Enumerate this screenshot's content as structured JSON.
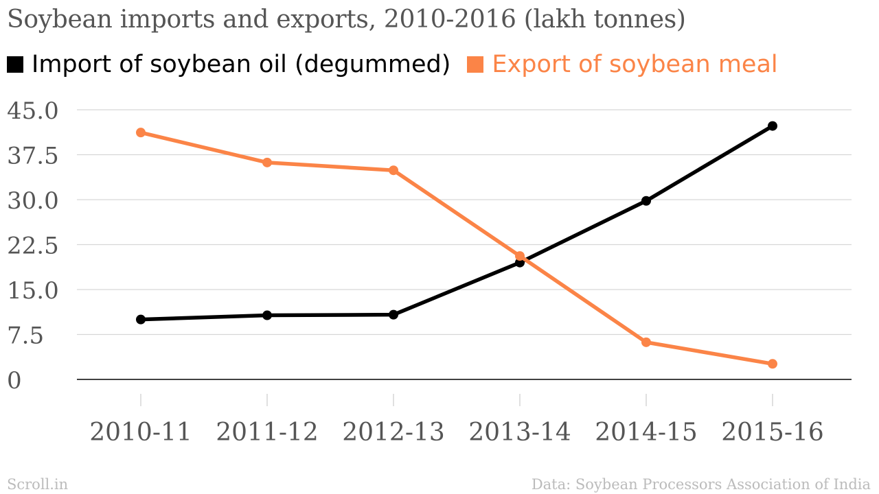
{
  "chart_data": {
    "type": "line",
    "title": "Soybean imports and exports, 2010-2016 (lakh tonnes)",
    "categories": [
      "2010-11",
      "2011-12",
      "2012-13",
      "2013-14",
      "2014-15",
      "2015-16"
    ],
    "series": [
      {
        "name": "Import of soybean oil (degummed)",
        "color": "#000000",
        "values": [
          10.0,
          10.7,
          10.8,
          19.5,
          29.8,
          42.3
        ]
      },
      {
        "name": "Export of soybean meal",
        "color": "#fb8447",
        "values": [
          41.2,
          36.2,
          34.9,
          20.6,
          6.2,
          2.6
        ]
      }
    ],
    "yticks": [
      "0",
      "7.5",
      "15.0",
      "22.5",
      "30.0",
      "37.5",
      "45.0"
    ],
    "ylim": [
      0,
      45
    ],
    "xlabel": "",
    "ylabel": "",
    "grid": true,
    "legend_position": "top-left"
  },
  "footer": {
    "source": "Scroll.in",
    "data_credit": "Data: Soybean Processors Association of India"
  }
}
